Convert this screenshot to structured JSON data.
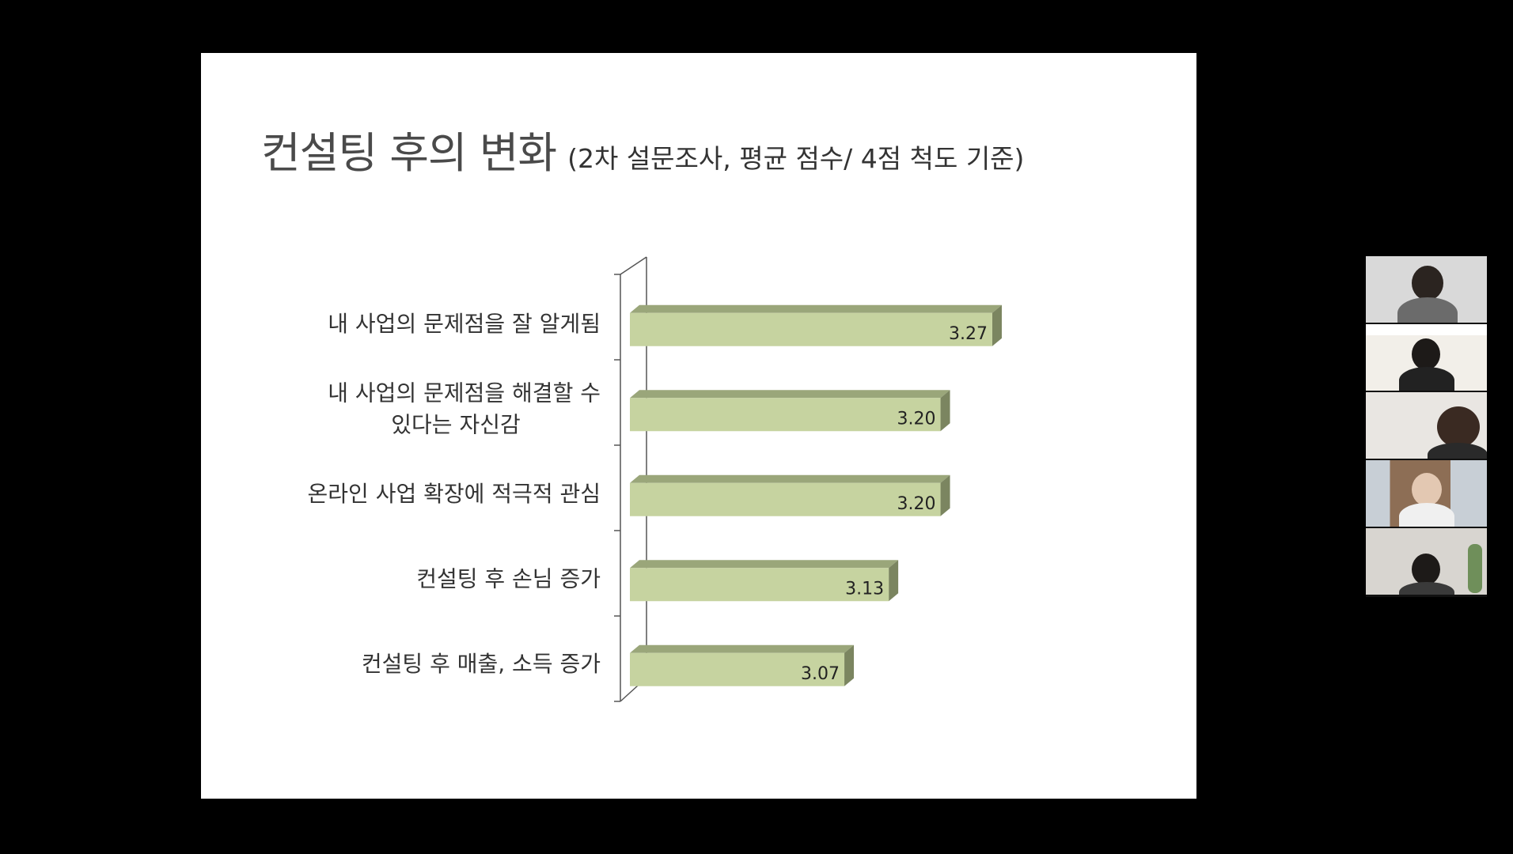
{
  "slide": {
    "title": "컨설팅 후의 변화",
    "subtitle": "(2차 설문조사, 평균 점수/ 4점 척도 기준)"
  },
  "chart_data": {
    "type": "bar",
    "orientation": "horizontal",
    "style": "3d",
    "categories": [
      [
        "내 사업의 문제점을 잘 알게됨"
      ],
      [
        "내 사업의 문제점을 해결할 수",
        "있다는 자신감"
      ],
      [
        "온라인 사업 확장에 적극적 관심"
      ],
      [
        "컨설팅 후 손님 증가"
      ],
      [
        "컨설팅 후 매출, 소득 증가"
      ]
    ],
    "values": [
      3.27,
      3.2,
      3.2,
      3.13,
      3.07
    ],
    "value_labels": [
      "3.27",
      "3.20",
      "3.20",
      "3.13",
      "3.07"
    ],
    "xlim": [
      2.78,
      3.3
    ],
    "colors": {
      "front": "#c6d3a0",
      "top": "#9aa67a",
      "side": "#7b8560",
      "axis": "#555555"
    }
  },
  "participants": {
    "tiles": [
      {
        "name_icon": "participant-video-1"
      },
      {
        "name_icon": "participant-video-2"
      },
      {
        "name_icon": "participant-video-3"
      },
      {
        "name_icon": "participant-video-4"
      },
      {
        "name_icon": "participant-video-5"
      }
    ]
  }
}
